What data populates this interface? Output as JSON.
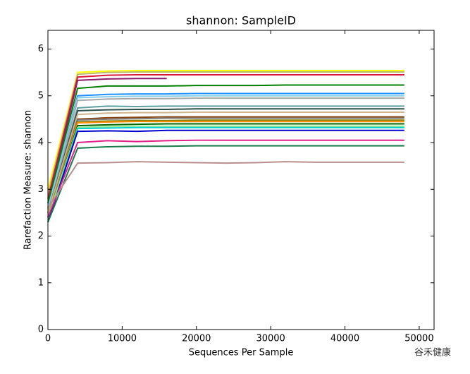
{
  "chart_data": {
    "type": "line",
    "title": "shannon: SampleID",
    "x_label": "Sequences Per Sample",
    "y_label": "Rarefaction Measure: shannon",
    "annotation": "谷禾健康",
    "x": [
      10,
      4000,
      8000,
      12000,
      16000,
      20000,
      24000,
      28000,
      32000,
      36000,
      40000,
      44000,
      48000
    ],
    "xlim": [
      0,
      52000
    ],
    "xticks": [
      0,
      10000,
      20000,
      30000,
      40000,
      50000
    ],
    "ylim": [
      0,
      6.4
    ],
    "yticks": [
      0,
      1,
      2,
      3,
      4,
      5,
      6
    ],
    "series": [
      {
        "color": "#ffff00",
        "values": [
          3.0,
          5.5,
          5.53,
          5.54,
          5.54,
          5.54,
          5.54,
          5.54,
          5.54,
          5.54,
          5.54,
          5.54,
          5.54
        ]
      },
      {
        "color": "#bdb76b",
        "values": [
          2.9,
          5.46,
          5.5,
          5.51,
          5.51,
          5.51,
          5.51,
          5.51,
          5.51,
          5.51,
          5.51,
          5.51,
          5.51
        ]
      },
      {
        "color": "#dc143c",
        "values": [
          2.8,
          5.4,
          5.44,
          5.45,
          5.45,
          5.45,
          5.45,
          5.45,
          5.45,
          5.45,
          5.45,
          5.45,
          5.45
        ]
      },
      {
        "color": "#8b1a6b",
        "values": [
          2.7,
          5.33,
          5.36,
          5.37,
          5.37,
          null,
          null,
          null,
          null,
          null,
          null,
          null,
          null
        ]
      },
      {
        "color": "#008000",
        "values": [
          2.7,
          5.16,
          5.21,
          5.21,
          5.21,
          5.22,
          5.22,
          5.22,
          5.23,
          5.23,
          5.23,
          5.23,
          5.23
        ]
      },
      {
        "color": "#1e90ff",
        "values": [
          2.6,
          5.0,
          5.03,
          5.04,
          5.04,
          5.05,
          5.05,
          5.05,
          5.05,
          5.05,
          5.05,
          5.05,
          5.05
        ]
      },
      {
        "color": "#87ceeb",
        "values": [
          2.6,
          4.96,
          4.98,
          4.99,
          4.99,
          5.0,
          5.0,
          5.0,
          5.0,
          5.0,
          5.0,
          5.0,
          5.0
        ]
      },
      {
        "color": "#a9a9a9",
        "values": [
          2.5,
          4.9,
          4.93,
          4.94,
          4.94,
          4.95,
          4.95,
          4.95,
          4.95,
          4.95,
          4.95,
          4.95,
          4.95
        ]
      },
      {
        "color": "#5f9ea0",
        "values": [
          2.5,
          4.74,
          4.78,
          4.77,
          4.78,
          4.78,
          4.78,
          4.78,
          4.78,
          4.78,
          4.78,
          4.78,
          4.78
        ]
      },
      {
        "color": "#2f4f4f",
        "values": [
          2.5,
          4.68,
          4.7,
          4.71,
          4.71,
          4.72,
          4.72,
          4.72,
          4.72,
          4.72,
          4.72,
          4.72,
          4.72
        ]
      },
      {
        "color": "#d2b48c",
        "values": [
          2.5,
          4.6,
          4.63,
          4.64,
          4.64,
          4.65,
          4.65,
          4.65,
          4.65,
          4.65,
          4.65,
          4.65,
          4.65
        ]
      },
      {
        "color": "#8b4513",
        "values": [
          2.4,
          4.5,
          4.53,
          4.54,
          4.55,
          4.55,
          4.55,
          4.55,
          4.55,
          4.55,
          4.55,
          4.55,
          4.55
        ]
      },
      {
        "color": "#808080",
        "values": [
          2.4,
          4.48,
          4.5,
          4.51,
          4.52,
          4.52,
          4.52,
          4.52,
          4.52,
          4.52,
          4.52,
          4.52,
          4.52
        ]
      },
      {
        "color": "#808000",
        "values": [
          2.4,
          4.44,
          4.46,
          4.47,
          4.47,
          4.48,
          4.48,
          4.48,
          4.48,
          4.48,
          4.48,
          4.48,
          4.48
        ]
      },
      {
        "color": "#ff8c00",
        "values": [
          2.4,
          4.42,
          4.44,
          4.45,
          4.45,
          4.45,
          4.45,
          4.45,
          4.45,
          4.45,
          4.45,
          4.45,
          4.45
        ]
      },
      {
        "color": "#006400",
        "values": [
          2.4,
          4.36,
          4.38,
          4.39,
          4.4,
          4.4,
          4.4,
          4.4,
          4.4,
          4.4,
          4.4,
          4.4,
          4.4
        ]
      },
      {
        "color": "#90ee90",
        "values": [
          2.4,
          4.32,
          4.34,
          4.35,
          4.35,
          4.35,
          4.35,
          4.35,
          4.35,
          4.35,
          4.35,
          4.35,
          4.35
        ]
      },
      {
        "color": "#00ced1",
        "values": [
          2.3,
          4.3,
          4.31,
          4.32,
          4.32,
          4.32,
          4.32,
          4.32,
          4.32,
          4.32,
          4.32,
          4.32,
          4.32
        ]
      },
      {
        "color": "#0000cd",
        "values": [
          2.3,
          4.24,
          4.25,
          4.24,
          4.26,
          4.26,
          4.26,
          4.26,
          4.26,
          4.26,
          4.26,
          4.26,
          4.26
        ]
      },
      {
        "color": "#e0218a",
        "values": [
          2.4,
          4.0,
          4.04,
          4.02,
          4.04,
          4.05,
          4.05,
          4.05,
          4.05,
          4.05,
          4.05,
          4.05,
          4.05
        ]
      },
      {
        "color": "#1b7a4a",
        "values": [
          2.3,
          3.88,
          3.91,
          3.92,
          3.92,
          3.93,
          3.93,
          3.93,
          3.93,
          3.93,
          3.93,
          3.93,
          3.93
        ]
      },
      {
        "color": "#bc8f8f",
        "values": [
          2.6,
          3.56,
          3.57,
          3.59,
          3.58,
          3.57,
          3.56,
          3.57,
          3.59,
          3.58,
          3.58,
          3.58,
          3.58
        ]
      }
    ]
  }
}
